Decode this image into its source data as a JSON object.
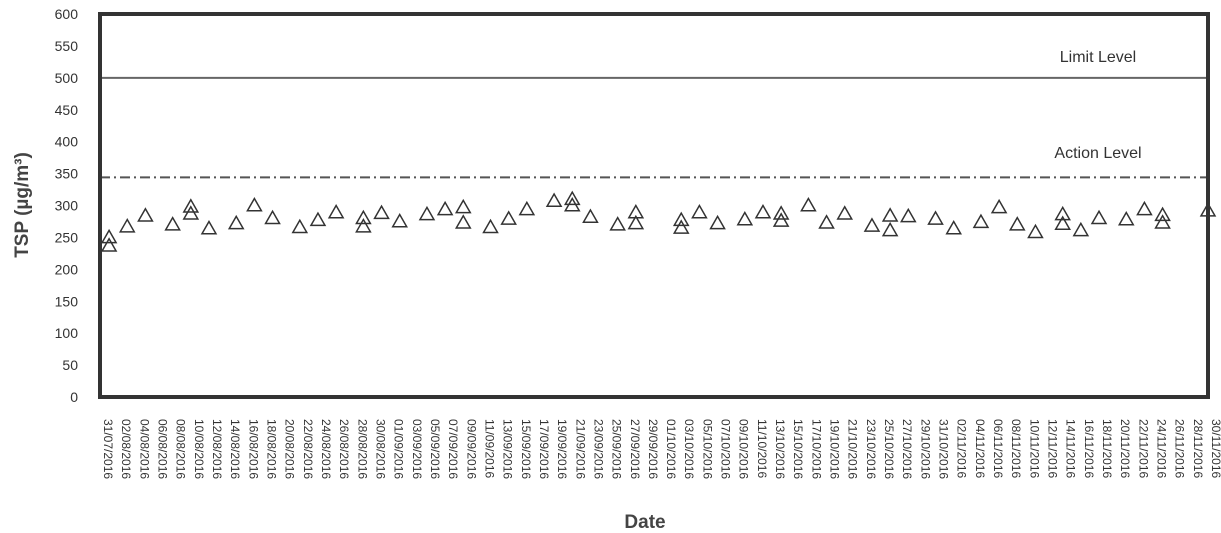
{
  "chart_data": {
    "type": "scatter",
    "title": "",
    "xlabel": "Date",
    "ylabel": "TSP (µg/m³)",
    "ylim": [
      0,
      600
    ],
    "yticks": [
      0,
      50,
      100,
      150,
      200,
      250,
      300,
      350,
      400,
      450,
      500,
      550,
      600
    ],
    "grid": false,
    "legend": "none",
    "xlim": [
      "2016-07-31",
      "2016-11-30"
    ],
    "x_tick_labels": [
      "31/07/2016",
      "02/08/2016",
      "04/08/2016",
      "06/08/2016",
      "08/08/2016",
      "10/08/2016",
      "12/08/2016",
      "14/08/2016",
      "16/08/2016",
      "18/08/2016",
      "20/08/2016",
      "22/08/2016",
      "24/08/2016",
      "26/08/2016",
      "28/08/2016",
      "30/08/2016",
      "01/09/2016",
      "03/09/2016",
      "05/09/2016",
      "07/09/2016",
      "09/09/2016",
      "11/09/2016",
      "13/09/2016",
      "15/09/2016",
      "17/09/2016",
      "19/09/2016",
      "21/09/2016",
      "23/09/2016",
      "25/09/2016",
      "27/09/2016",
      "29/09/2016",
      "01/10/2016",
      "03/10/2016",
      "05/10/2016",
      "07/10/2016",
      "09/10/2016",
      "11/10/2016",
      "13/10/2016",
      "15/10/2016",
      "17/10/2016",
      "19/10/2016",
      "21/10/2016",
      "23/10/2016",
      "25/10/2016",
      "27/10/2016",
      "29/10/2016",
      "31/10/2016",
      "02/11/2016",
      "04/11/2016",
      "06/11/2016",
      "08/11/2016",
      "10/11/2016",
      "12/11/2016",
      "14/11/2016",
      "16/11/2016",
      "18/11/2016",
      "20/11/2016",
      "22/11/2016",
      "24/11/2016",
      "26/11/2016",
      "28/11/2016",
      "30/11/2016"
    ],
    "series": [
      {
        "marker": "open-triangle",
        "color": "#333333",
        "points": [
          {
            "x": "2016-08-01",
            "y": 250
          },
          {
            "x": "2016-08-01",
            "y": 237
          },
          {
            "x": "2016-08-03",
            "y": 267
          },
          {
            "x": "2016-08-05",
            "y": 284
          },
          {
            "x": "2016-08-08",
            "y": 270
          },
          {
            "x": "2016-08-10",
            "y": 298
          },
          {
            "x": "2016-08-10",
            "y": 287
          },
          {
            "x": "2016-08-12",
            "y": 264
          },
          {
            "x": "2016-08-15",
            "y": 272
          },
          {
            "x": "2016-08-17",
            "y": 300
          },
          {
            "x": "2016-08-19",
            "y": 280
          },
          {
            "x": "2016-08-22",
            "y": 266
          },
          {
            "x": "2016-08-24",
            "y": 277
          },
          {
            "x": "2016-08-26",
            "y": 289
          },
          {
            "x": "2016-08-29",
            "y": 280
          },
          {
            "x": "2016-08-29",
            "y": 267
          },
          {
            "x": "2016-08-31",
            "y": 288
          },
          {
            "x": "2016-09-02",
            "y": 275
          },
          {
            "x": "2016-09-05",
            "y": 286
          },
          {
            "x": "2016-09-07",
            "y": 294
          },
          {
            "x": "2016-09-09",
            "y": 297
          },
          {
            "x": "2016-09-09",
            "y": 273
          },
          {
            "x": "2016-09-12",
            "y": 266
          },
          {
            "x": "2016-09-14",
            "y": 279
          },
          {
            "x": "2016-09-16",
            "y": 294
          },
          {
            "x": "2016-09-19",
            "y": 307
          },
          {
            "x": "2016-09-21",
            "y": 310
          },
          {
            "x": "2016-09-21",
            "y": 300
          },
          {
            "x": "2016-09-23",
            "y": 282
          },
          {
            "x": "2016-09-26",
            "y": 270
          },
          {
            "x": "2016-09-28",
            "y": 289
          },
          {
            "x": "2016-09-28",
            "y": 272
          },
          {
            "x": "2016-10-03",
            "y": 277
          },
          {
            "x": "2016-10-03",
            "y": 265
          },
          {
            "x": "2016-10-05",
            "y": 289
          },
          {
            "x": "2016-10-07",
            "y": 272
          },
          {
            "x": "2016-10-10",
            "y": 278
          },
          {
            "x": "2016-10-12",
            "y": 289
          },
          {
            "x": "2016-10-14",
            "y": 287
          },
          {
            "x": "2016-10-14",
            "y": 276
          },
          {
            "x": "2016-10-17",
            "y": 300
          },
          {
            "x": "2016-10-19",
            "y": 273
          },
          {
            "x": "2016-10-21",
            "y": 287
          },
          {
            "x": "2016-10-24",
            "y": 268
          },
          {
            "x": "2016-10-26",
            "y": 284
          },
          {
            "x": "2016-10-26",
            "y": 261
          },
          {
            "x": "2016-10-28",
            "y": 283
          },
          {
            "x": "2016-10-31",
            "y": 279
          },
          {
            "x": "2016-11-02",
            "y": 264
          },
          {
            "x": "2016-11-05",
            "y": 274
          },
          {
            "x": "2016-11-07",
            "y": 297
          },
          {
            "x": "2016-11-09",
            "y": 270
          },
          {
            "x": "2016-11-11",
            "y": 258
          },
          {
            "x": "2016-11-14",
            "y": 286
          },
          {
            "x": "2016-11-14",
            "y": 271
          },
          {
            "x": "2016-11-16",
            "y": 261
          },
          {
            "x": "2016-11-18",
            "y": 280
          },
          {
            "x": "2016-11-21",
            "y": 278
          },
          {
            "x": "2016-11-23",
            "y": 294
          },
          {
            "x": "2016-11-25",
            "y": 285
          },
          {
            "x": "2016-11-25",
            "y": 273
          },
          {
            "x": "2016-11-30",
            "y": 292
          }
        ]
      }
    ],
    "reference_lines": [
      {
        "label": "Limit Level",
        "y": 500,
        "style": "solid",
        "color": "#666666"
      },
      {
        "label": "Action Level",
        "y": 344,
        "style": "dash-dot",
        "color": "#555555"
      }
    ]
  }
}
